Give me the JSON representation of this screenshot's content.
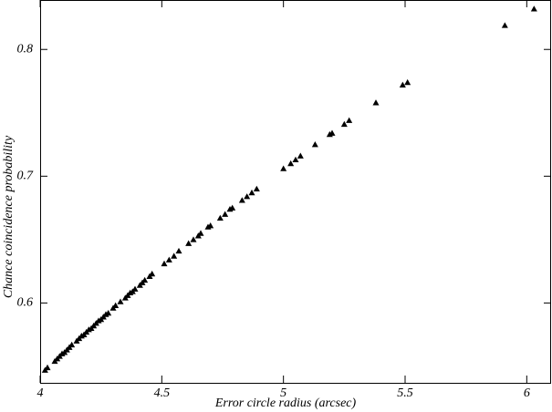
{
  "chart_data": {
    "type": "scatter",
    "x_label": "Error circle radius (arcsec)",
    "y_label": "Chance coincidence probability",
    "color": "#000000",
    "x": [
      4.02,
      4.03,
      4.06,
      4.07,
      4.08,
      4.09,
      4.1,
      4.11,
      4.12,
      4.13,
      4.15,
      4.16,
      4.17,
      4.18,
      4.19,
      4.2,
      4.21,
      4.22,
      4.23,
      4.24,
      4.25,
      4.26,
      4.27,
      4.28,
      4.3,
      4.31,
      4.33,
      4.35,
      4.36,
      4.37,
      4.38,
      4.39,
      4.41,
      4.42,
      4.43,
      4.45,
      4.46,
      4.51,
      4.53,
      4.55,
      4.57,
      4.61,
      4.63,
      4.65,
      4.66,
      4.69,
      4.7,
      4.74,
      4.76,
      4.78,
      4.79,
      4.83,
      4.85,
      4.87,
      4.89,
      5.0,
      5.03,
      5.05,
      5.07,
      5.13,
      5.19,
      5.2,
      5.25,
      5.27,
      5.38,
      5.49,
      5.51,
      5.91,
      6.03
    ],
    "values": [
      0.547,
      0.549,
      0.554,
      0.556,
      0.558,
      0.56,
      0.561,
      0.563,
      0.565,
      0.567,
      0.57,
      0.572,
      0.574,
      0.575,
      0.577,
      0.579,
      0.58,
      0.582,
      0.584,
      0.586,
      0.587,
      0.589,
      0.591,
      0.592,
      0.596,
      0.598,
      0.601,
      0.604,
      0.606,
      0.608,
      0.609,
      0.611,
      0.614,
      0.616,
      0.618,
      0.621,
      0.623,
      0.631,
      0.634,
      0.637,
      0.641,
      0.647,
      0.65,
      0.653,
      0.655,
      0.66,
      0.661,
      0.667,
      0.67,
      0.674,
      0.675,
      0.681,
      0.684,
      0.687,
      0.69,
      0.706,
      0.71,
      0.713,
      0.716,
      0.725,
      0.733,
      0.734,
      0.741,
      0.744,
      0.758,
      0.772,
      0.774,
      0.819,
      0.832
    ],
    "xlim": [
      4,
      6.1
    ],
    "xticks": [
      4,
      4.5,
      5,
      5.5,
      6
    ],
    "ylim": [
      0.537,
      0.839
    ],
    "yticks": [
      0.6,
      0.7,
      0.8
    ]
  }
}
